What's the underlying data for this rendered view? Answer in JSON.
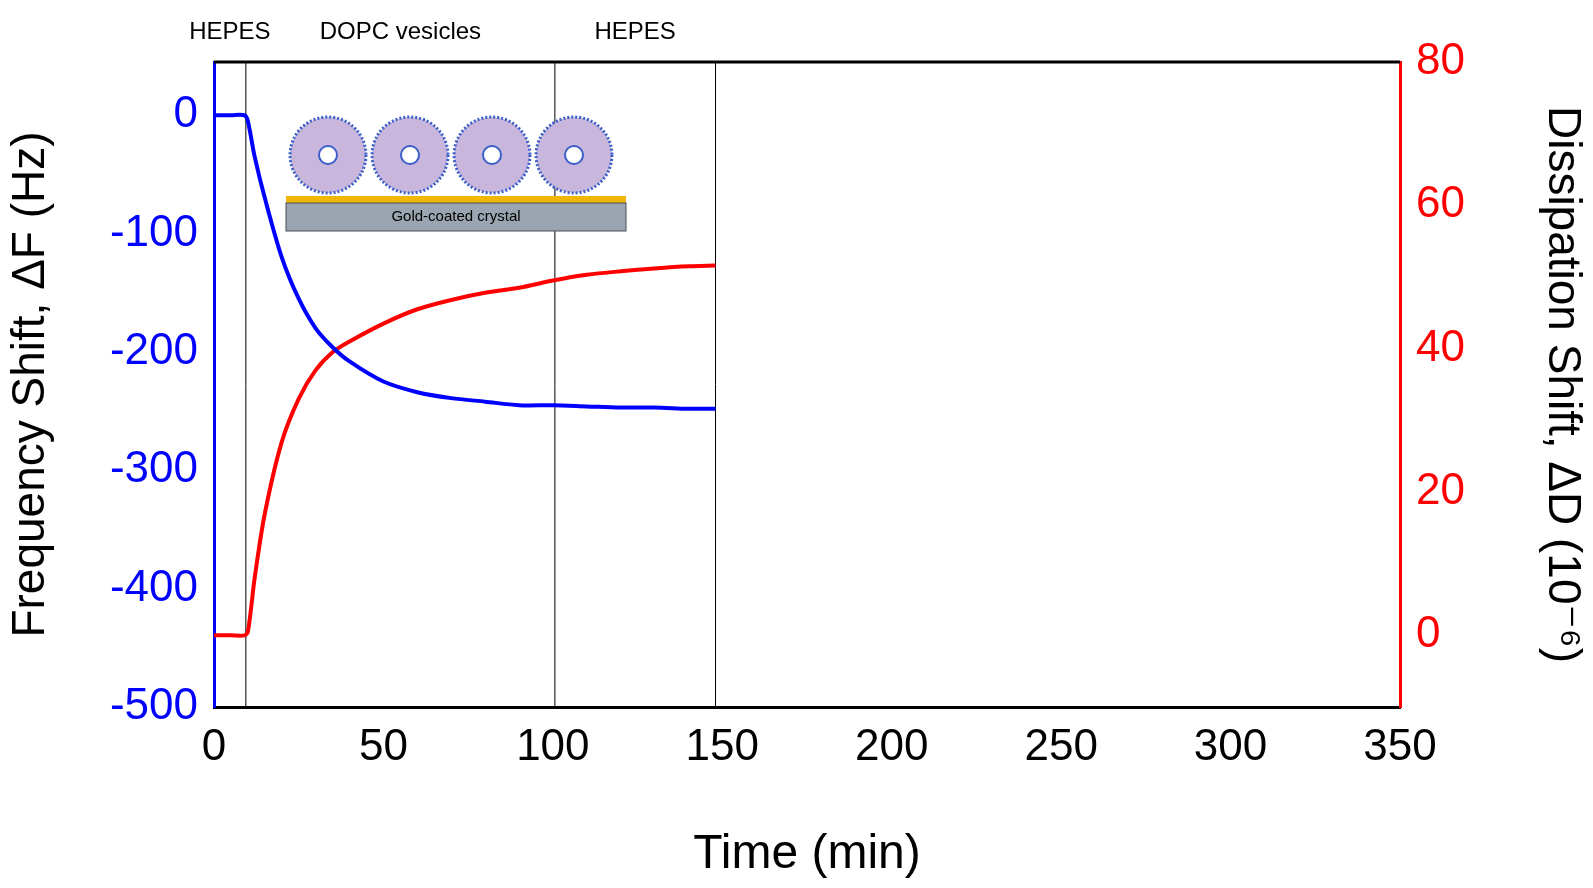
{
  "chart_data": {
    "type": "line",
    "x_label": "Time (min)",
    "y_label": "Frequency Shift, ΔF (Hz)",
    "y2_label": "Dissipation Shift, ΔD (10⁻⁶)",
    "x": [
      0,
      5,
      9,
      10,
      12,
      15,
      20,
      25,
      30,
      35,
      40,
      50,
      60,
      70,
      80,
      90,
      100,
      110,
      120,
      130,
      140,
      148
    ],
    "series": [
      {
        "color": "#0000ff",
        "values": [
          0,
          0,
          0,
          -5,
          -35,
          -70,
          -120,
          -155,
          -180,
          -196,
          -208,
          -225,
          -234,
          -239,
          -242,
          -245,
          -245,
          -246,
          -247,
          -247,
          -248,
          -248
        ]
      },
      {
        "color": "#ff0000",
        "axis": "y2",
        "values": [
          0,
          0,
          0,
          0.5,
          8,
          17,
          27,
          33,
          37,
          39.5,
          41,
          43.5,
          45.5,
          46.8,
          47.8,
          48.5,
          49.5,
          50.3,
          50.8,
          51.2,
          51.5,
          51.6
        ]
      }
    ],
    "xlim": [
      0,
      350
    ],
    "xticks": [
      0,
      50,
      100,
      150,
      200,
      250,
      300,
      350
    ],
    "ylim": [
      -500,
      45
    ],
    "yticks": [
      -500,
      -400,
      -300,
      -200,
      -100,
      0
    ],
    "y2lim": [
      -10,
      80
    ],
    "y2ticks": [
      0,
      20,
      40,
      60,
      80
    ],
    "phases": [
      {
        "label": "HEPES",
        "start": 0,
        "end": 9.4
      },
      {
        "label": "DOPC vesicles",
        "start": 9.4,
        "end": 100.6
      },
      {
        "label": "HEPES",
        "start": 100.6,
        "end": 148
      }
    ],
    "inset_label": "Gold-coated crystal",
    "grid": false
  }
}
